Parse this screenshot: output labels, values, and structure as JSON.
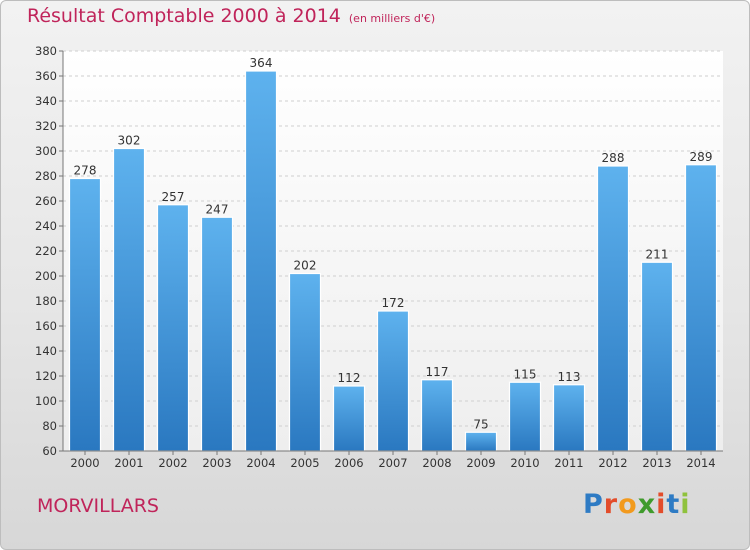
{
  "header": {
    "title": "Résultat Comptable 2000 à 2014",
    "subtitle": "(en milliers d'€)"
  },
  "footer": {
    "commune": "MORVILLARS",
    "logo_text": "Proxiti",
    "logo_colors": [
      "#2e7bc4",
      "#e34c2a",
      "#f29a1e",
      "#3f9b2c",
      "#e34c2a",
      "#2e7bc4",
      "#8fc23d"
    ]
  },
  "chart_data": {
    "type": "bar",
    "categories": [
      "2000",
      "2001",
      "2002",
      "2003",
      "2004",
      "2005",
      "2006",
      "2007",
      "2008",
      "2009",
      "2010",
      "2011",
      "2012",
      "2013",
      "2014"
    ],
    "values": [
      278,
      302,
      257,
      247,
      364,
      202,
      112,
      172,
      117,
      75,
      115,
      113,
      288,
      211,
      289
    ],
    "title": "Résultat Comptable 2000 à 2014",
    "subtitle": "(en milliers d'€)",
    "ylim": [
      60,
      380
    ],
    "yticks": [
      60,
      80,
      100,
      120,
      140,
      160,
      180,
      200,
      220,
      240,
      260,
      280,
      300,
      320,
      340,
      360,
      380
    ],
    "grid": true,
    "bar_color": "#4a9fe0",
    "data_labels": true
  }
}
